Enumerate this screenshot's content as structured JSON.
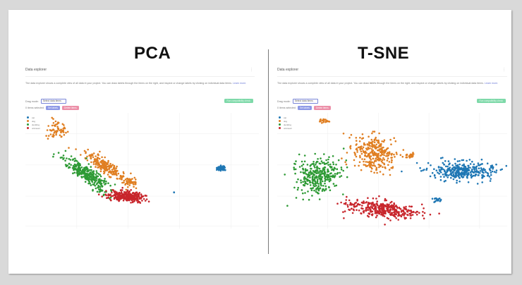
{
  "colors": {
    "class0": "#1f77b4",
    "class1": "#e07f22",
    "class2": "#2e9a35",
    "class3": "#c8262c",
    "primary_btn": "#8e99e6",
    "danger_btn": "#ec8fa8",
    "success_btn": "#7ed9a9",
    "divider": "#7a7a7a"
  },
  "panels": [
    {
      "title": "PCA",
      "header": "Data explorer",
      "kebab": "⋮",
      "description": "The data explorer shows a complete view of all data in your project. You can draw labels through the items on the right, and inspect or change labels by clicking on individual data items.",
      "learn_more": "Learn more.",
      "drag_mode_label": "Drag mode:",
      "drag_mode_value": "Select data items",
      "items_selected": "0 items selected",
      "set_labels": "Set labels",
      "delete_items": "Delete items",
      "generate_btn": "Run compatibility check",
      "legend": [
        "cat",
        "dog",
        "duckling",
        "unknown"
      ]
    },
    {
      "title": "T-SNE",
      "header": "Data explorer",
      "kebab": "⋮",
      "description": "The data explorer shows a complete view of all data in your project. You can draw labels through the items on the right, and inspect or change labels by clicking on individual data items.",
      "learn_more": "Learn more.",
      "drag_mode_label": "Drag mode:",
      "drag_mode_value": "Select data items",
      "items_selected": "0 items selected",
      "set_labels": "Set labels",
      "delete_items": "Delete items",
      "generate_btn": "Run compatibility check",
      "legend": [
        "cat",
        "dog",
        "duckling",
        "unknown"
      ]
    }
  ],
  "chart_data": [
    {
      "type": "scatter",
      "title": "PCA",
      "xlabel": "",
      "ylabel": "",
      "grid": true,
      "legend_position": "top-left",
      "series": [
        {
          "name": "cat",
          "color": "#1f77b4",
          "clusters": [
            {
              "cx": 0.84,
              "cy": 0.48,
              "rx": 0.018,
              "ry": 0.018,
              "n": 60,
              "rot": 0
            },
            {
              "cx": 0.635,
              "cy": 0.685,
              "rx": 0.004,
              "ry": 0.004,
              "n": 2,
              "rot": 0
            }
          ]
        },
        {
          "name": "dog",
          "color": "#e07f22",
          "clusters": [
            {
              "cx": 0.135,
              "cy": 0.14,
              "rx": 0.04,
              "ry": 0.08,
              "n": 60,
              "rot": 0.5
            },
            {
              "cx": 0.34,
              "cy": 0.46,
              "rx": 0.09,
              "ry": 0.045,
              "n": 220,
              "rot": 0.55
            },
            {
              "cx": 0.45,
              "cy": 0.6,
              "rx": 0.035,
              "ry": 0.04,
              "n": 50,
              "rot": 0.3
            }
          ]
        },
        {
          "name": "duckling",
          "color": "#2e9a35",
          "clusters": [
            {
              "cx": 0.26,
              "cy": 0.52,
              "rx": 0.1,
              "ry": 0.05,
              "n": 300,
              "rot": 0.55
            },
            {
              "cx": 0.32,
              "cy": 0.68,
              "rx": 0.04,
              "ry": 0.03,
              "n": 25,
              "rot": 0.5
            }
          ]
        },
        {
          "name": "unknown",
          "color": "#c8262c",
          "clusters": [
            {
              "cx": 0.43,
              "cy": 0.72,
              "rx": 0.07,
              "ry": 0.04,
              "n": 300,
              "rot": 0.1
            }
          ]
        }
      ]
    },
    {
      "type": "scatter",
      "title": "T-SNE",
      "xlabel": "",
      "ylabel": "",
      "grid": true,
      "legend_position": "top-left",
      "series": [
        {
          "name": "cat",
          "color": "#1f77b4",
          "clusters": [
            {
              "cx": 0.81,
              "cy": 0.5,
              "rx": 0.13,
              "ry": 0.07,
              "n": 340,
              "rot": 0
            },
            {
              "cx": 0.695,
              "cy": 0.75,
              "rx": 0.015,
              "ry": 0.016,
              "n": 20,
              "rot": 0
            }
          ]
        },
        {
          "name": "dog",
          "color": "#e07f22",
          "clusters": [
            {
              "cx": 0.2,
              "cy": 0.07,
              "rx": 0.022,
              "ry": 0.012,
              "n": 20,
              "rot": 0
            },
            {
              "cx": 0.42,
              "cy": 0.35,
              "rx": 0.08,
              "ry": 0.14,
              "n": 300,
              "rot": 0.2
            },
            {
              "cx": 0.575,
              "cy": 0.37,
              "rx": 0.025,
              "ry": 0.025,
              "n": 25,
              "rot": 0
            }
          ]
        },
        {
          "name": "duckling",
          "color": "#2e9a35",
          "clusters": [
            {
              "cx": 0.18,
              "cy": 0.55,
              "rx": 0.09,
              "ry": 0.14,
              "n": 320,
              "rot": -0.3
            }
          ]
        },
        {
          "name": "unknown",
          "color": "#c8262c",
          "clusters": [
            {
              "cx": 0.45,
              "cy": 0.83,
              "rx": 0.14,
              "ry": 0.065,
              "n": 360,
              "rot": 0.15
            }
          ]
        }
      ]
    }
  ]
}
